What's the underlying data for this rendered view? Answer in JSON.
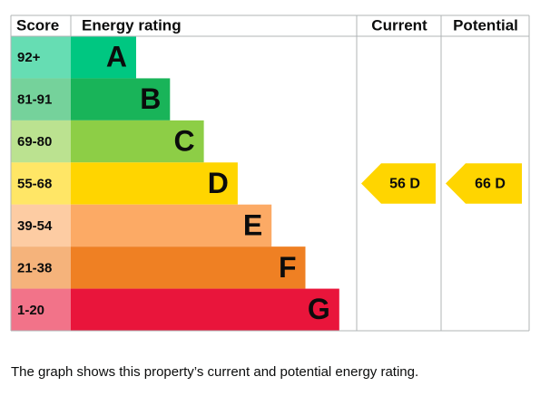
{
  "header": {
    "score": "Score",
    "rating": "Energy rating",
    "current": "Current",
    "potential": "Potential"
  },
  "bands": [
    {
      "range": "92+",
      "letter": "A",
      "color": "#00c781"
    },
    {
      "range": "81-91",
      "letter": "B",
      "color": "#19b459"
    },
    {
      "range": "69-80",
      "letter": "C",
      "color": "#8dce46"
    },
    {
      "range": "55-68",
      "letter": "D",
      "color": "#ffd500"
    },
    {
      "range": "39-54",
      "letter": "E",
      "color": "#fcaa65"
    },
    {
      "range": "21-38",
      "letter": "F",
      "color": "#ef8023"
    },
    {
      "range": "1-20",
      "letter": "G",
      "color": "#e9153b"
    }
  ],
  "current": {
    "label": "56 D"
  },
  "potential": {
    "label": "66 D"
  },
  "caption": "The graph shows this property’s current and potential energy rating."
}
